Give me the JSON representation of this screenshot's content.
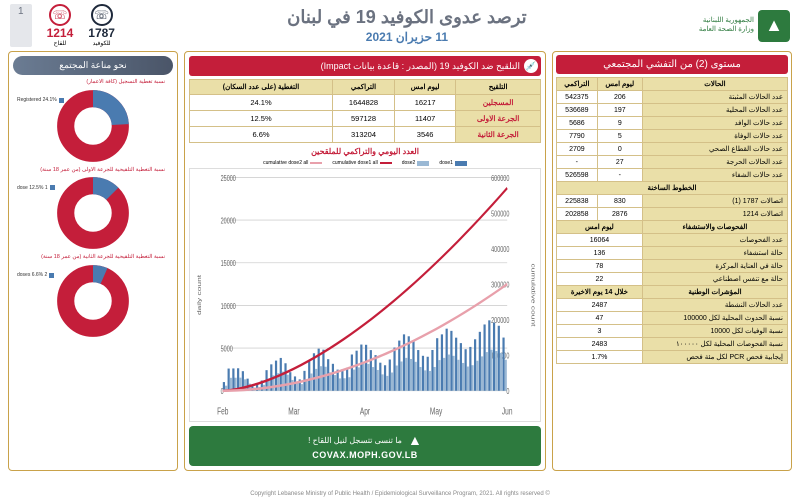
{
  "header": {
    "org_line1": "الجمهورية اللبنانية",
    "org_line2": "وزارة الصحة العامة",
    "title": "ترصد عدوى الكوفيد 19 في لبنان",
    "date": "11 حزيران 2021",
    "hotline_covid_num": "1787",
    "hotline_covid_label": "للكوفيد",
    "hotline_vax_num": "1214",
    "hotline_vax_label": "للقاح",
    "page": "1"
  },
  "alert": "مستوى (2) من التفشي المجتمعي",
  "stats": {
    "h_cases": "الحالات",
    "h_yesterday": "ليوم امس",
    "h_cumulative": "التراكمي",
    "r1l": "عدد الحالات المثبتة",
    "r1y": "206",
    "r1c": "542375",
    "r2l": "عدد الحالات المحلية",
    "r2y": "197",
    "r2c": "536689",
    "r3l": "عدد حالات الوافد",
    "r3y": "9",
    "r3c": "5686",
    "r4l": "عدد حالات الوفاة",
    "r4y": "5",
    "r4c": "7790",
    "r5l": "عدد حالات القطاع الصحي",
    "r5y": "0",
    "r5c": "2709",
    "r6l": "عدد الحالات الحرجة",
    "r6y": "27",
    "r6c": "-",
    "r7l": "عدد حالات الشفاء",
    "r7y": "-",
    "r7c": "526598",
    "h_hotlines": "الخطوط الساخنة",
    "r8l": "اتصالات 1787 (1)",
    "r8y": "830",
    "r8c": "225838",
    "r9l": "اتصالات 1214",
    "r9y": "2876",
    "r9c": "202858",
    "h_tests": "الفحوصات والاستشفاء",
    "h_tests_y": "ليوم امس",
    "r10l": "عدد الفحوصات",
    "r10v": "16064",
    "r11l": "حالة استشفاء",
    "r11v": "136",
    "r12l": "حالة في العناية المركزة",
    "r12v": "78",
    "r13l": "حالة مع تنفس اصطناعي",
    "r13v": "22",
    "h_indicators": "المؤشرات الوطنية",
    "h_ind_period": "خلال 14 يوم الاخيرة",
    "r14l": "عدد الحالات النشطة",
    "r14v": "2487",
    "r15l": "نسبة الحدوث المحلية لكل 100000",
    "r15v": "47",
    "r16l": "نسبة الوفيات لكل 10000",
    "r16v": "3",
    "r17l": "نسبة الفحوصات المحلية لكل ١٠٠٠٠٠",
    "r17v": "2483",
    "r18l": "إيجابية فحص PCR لكل مئة فحص",
    "r18v": "1.7%"
  },
  "vaccine": {
    "header": "التلقيح ضد الكوفيد 19 (المصدر : قاعدة بيانات Impact)",
    "h1": "التلقيح",
    "h2": "ليوم امس",
    "h3": "التراكمي",
    "h4": "التغطية (على عدد السكان)",
    "r1l": "المسجلين",
    "r1y": "16217",
    "r1c": "1644828",
    "r1p": "24.1%",
    "r2l": "الجرعة الاولى",
    "r2y": "11407",
    "r2c": "597128",
    "r2p": "12.5%",
    "r3l": "الجرعة الثانية",
    "r3y": "3546",
    "r3c": "313204",
    "r3p": "6.6%",
    "chart_title": "العدد اليومي والتراكمي للملقحين",
    "legend": {
      "d1": "dose1",
      "d2": "dose2",
      "c1": "cumulative dose1 all",
      "c2": "cumulative dose2 all"
    },
    "chart": {
      "months": [
        "Feb",
        "Mar",
        "Apr",
        "May",
        "Jun"
      ],
      "y_left_ticks": [
        "25000",
        "20000",
        "15000",
        "10000",
        "5000",
        "0"
      ],
      "y_right_ticks": [
        "600000",
        "500000",
        "400000",
        "300000",
        "200000",
        "100000",
        "0"
      ],
      "colors": {
        "dose1_bar": "#4a7bb0",
        "dose2_bar": "#9ab8d4",
        "cum1": "#c41e3a",
        "cum2": "#e8a0ab",
        "grid": "#d0d0d0"
      }
    },
    "covax_text": "ما تنسى تتسجل لنيل اللقاح !",
    "covax_url": "COVAX.MOPH.GOV.LB"
  },
  "immunity": {
    "header": "نحو مناعة المجتمع",
    "d1_label": "نسبة تغطية التسجيل (كافة الاعمار)",
    "d1_legend": "Registered 24.1%",
    "d1_pct": 24.1,
    "d2_label": "نسبة التغطية التلقيحية للجرعة الاولى (من عمر 18 سنة)",
    "d2_legend": "1 dose 12.5%",
    "d2_pct": 12.5,
    "d3_label": "نسبة التغطية التلقيحية للجرعة الثانية (من عمر 18 سنة)",
    "d3_legend": "2 doses 6.6%",
    "d3_pct": 6.6,
    "colors": {
      "filled": "#4a7bb0",
      "empty": "#c41e3a"
    }
  },
  "footer": "© Copyright Lebanese Ministry of Public Health / Epidemiological Surveillance Program, 2021. All rights reserved"
}
